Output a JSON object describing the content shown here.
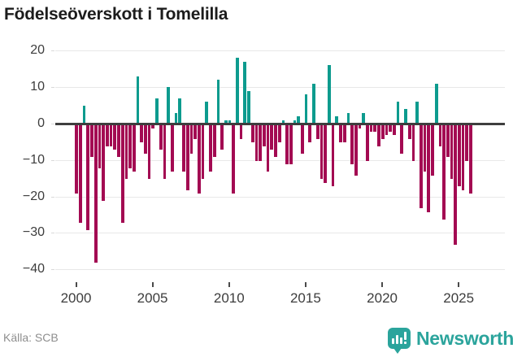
{
  "title": "Födelseöverskott i Tomelilla",
  "footer": {
    "source": "Källa: SCB",
    "brand": "Newsworthy"
  },
  "colors": {
    "positive": "#0d9b8e",
    "negative": "#a30a52",
    "zero_line": "#3e3e3e",
    "gridline": "#e8e8e8",
    "axis_text": "#3d3d3d",
    "brand_teal": "#2ba49c"
  },
  "chart_data": {
    "type": "bar",
    "title": "Födelseöverskott i Tomelilla",
    "xlabel": "",
    "ylabel": "",
    "x_unit": "quarter",
    "ylim": [
      -40,
      20
    ],
    "grid": true,
    "y_ticks": [
      20,
      10,
      0,
      -10,
      -20,
      -30,
      -40
    ],
    "y_tick_labels": [
      "20",
      "10",
      "0",
      "−10",
      "−20",
      "−30",
      "−40"
    ],
    "x_tick_labels": [
      "2000",
      "2005",
      "2010",
      "2015",
      "2020",
      "2025"
    ],
    "series": [
      {
        "year": 2000,
        "values": [
          -19,
          -27,
          5,
          -29
        ]
      },
      {
        "year": 2001,
        "values": [
          -9,
          -38,
          -12,
          -21
        ]
      },
      {
        "year": 2002,
        "values": [
          -6,
          -6,
          -7,
          -9
        ]
      },
      {
        "year": 2003,
        "values": [
          -27,
          -15,
          -12,
          -13
        ]
      },
      {
        "year": 2004,
        "values": [
          13,
          -5,
          -8,
          -15
        ]
      },
      {
        "year": 2005,
        "values": [
          -1,
          7,
          -7,
          -15
        ]
      },
      {
        "year": 2006,
        "values": [
          10,
          -13,
          3,
          7
        ]
      },
      {
        "year": 2007,
        "values": [
          -13,
          -18,
          -8,
          -4
        ]
      },
      {
        "year": 2008,
        "values": [
          -19,
          -15,
          6,
          -13
        ]
      },
      {
        "year": 2009,
        "values": [
          -9,
          12,
          -7,
          1
        ]
      },
      {
        "year": 2010,
        "values": [
          1,
          -19,
          18,
          -4
        ]
      },
      {
        "year": 2011,
        "values": [
          17,
          9,
          -5,
          -10
        ]
      },
      {
        "year": 2012,
        "values": [
          -10,
          -6,
          -13,
          -7
        ]
      },
      {
        "year": 2013,
        "values": [
          -9,
          -5,
          1,
          -11
        ]
      },
      {
        "year": 2014,
        "values": [
          -11,
          1,
          2,
          -8
        ]
      },
      {
        "year": 2015,
        "values": [
          8,
          -5,
          11,
          -4
        ]
      },
      {
        "year": 2016,
        "values": [
          -15,
          -16,
          16,
          -17
        ]
      },
      {
        "year": 2017,
        "values": [
          2,
          -5,
          -5,
          3
        ]
      },
      {
        "year": 2018,
        "values": [
          -11,
          -14,
          -1,
          3
        ]
      },
      {
        "year": 2019,
        "values": [
          -10,
          -2,
          -2,
          -6
        ]
      },
      {
        "year": 2020,
        "values": [
          -4,
          -3,
          -2,
          -3
        ]
      },
      {
        "year": 2021,
        "values": [
          6,
          -8,
          4,
          -4
        ]
      },
      {
        "year": 2022,
        "values": [
          -10,
          6,
          -23,
          -13
        ]
      },
      {
        "year": 2023,
        "values": [
          -24,
          -14,
          11,
          -6
        ]
      },
      {
        "year": 2024,
        "values": [
          -26,
          -9,
          -15,
          -33
        ]
      },
      {
        "year": 2025,
        "values": [
          -17,
          -18,
          -10,
          -19
        ]
      }
    ]
  }
}
